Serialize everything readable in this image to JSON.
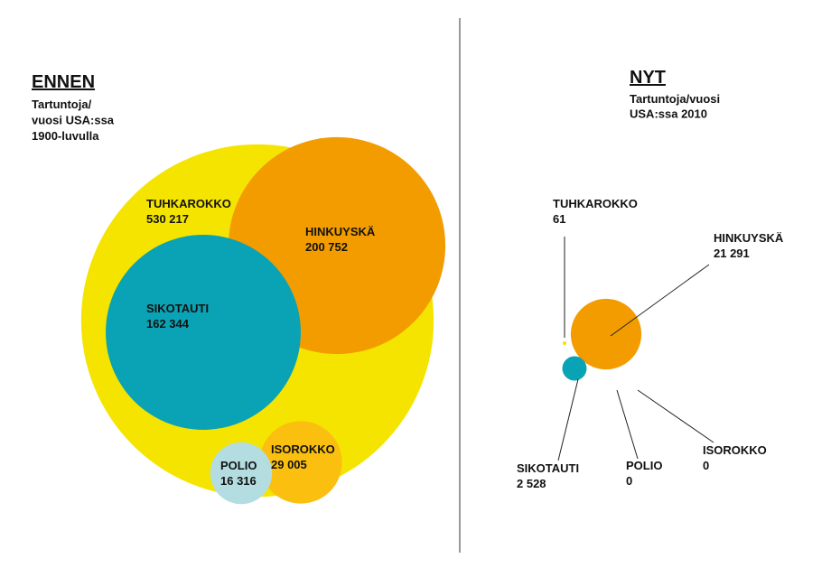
{
  "chart_data": [
    {
      "type": "bubble",
      "title": "ENNEN",
      "subtitle": [
        "Tartuntoja/",
        "vuosi USA:ssa",
        "1900-luvulla"
      ],
      "categories": [
        "TUHKAROKKO",
        "HINKUYSKÄ",
        "SIKOTAUTI",
        "ISOROKKO",
        "POLIO"
      ],
      "values": [
        530217,
        200752,
        162344,
        29005,
        16316
      ],
      "value_labels": [
        "530 217",
        "200 752",
        "162 344",
        "29 005",
        "16 316"
      ],
      "colors": [
        "#f5e400",
        "#f39c00",
        "#0aa3b5",
        "#fbbf10",
        "#b3dde0"
      ]
    },
    {
      "type": "bubble",
      "title": "NYT",
      "subtitle": [
        "Tartuntoja/vuosi",
        "USA:ssa 2010"
      ],
      "categories": [
        "TUHKAROKKO",
        "HINKUYSKÄ",
        "SIKOTAUTI",
        "ISOROKKO",
        "POLIO"
      ],
      "values": [
        61,
        21291,
        2528,
        0,
        0
      ],
      "value_labels": [
        "61",
        "21 291",
        "2 528",
        "0",
        "0"
      ],
      "colors": [
        "#f5e400",
        "#f39c00",
        "#0aa3b5",
        "#fbbf10",
        "#b3dde0"
      ]
    }
  ]
}
